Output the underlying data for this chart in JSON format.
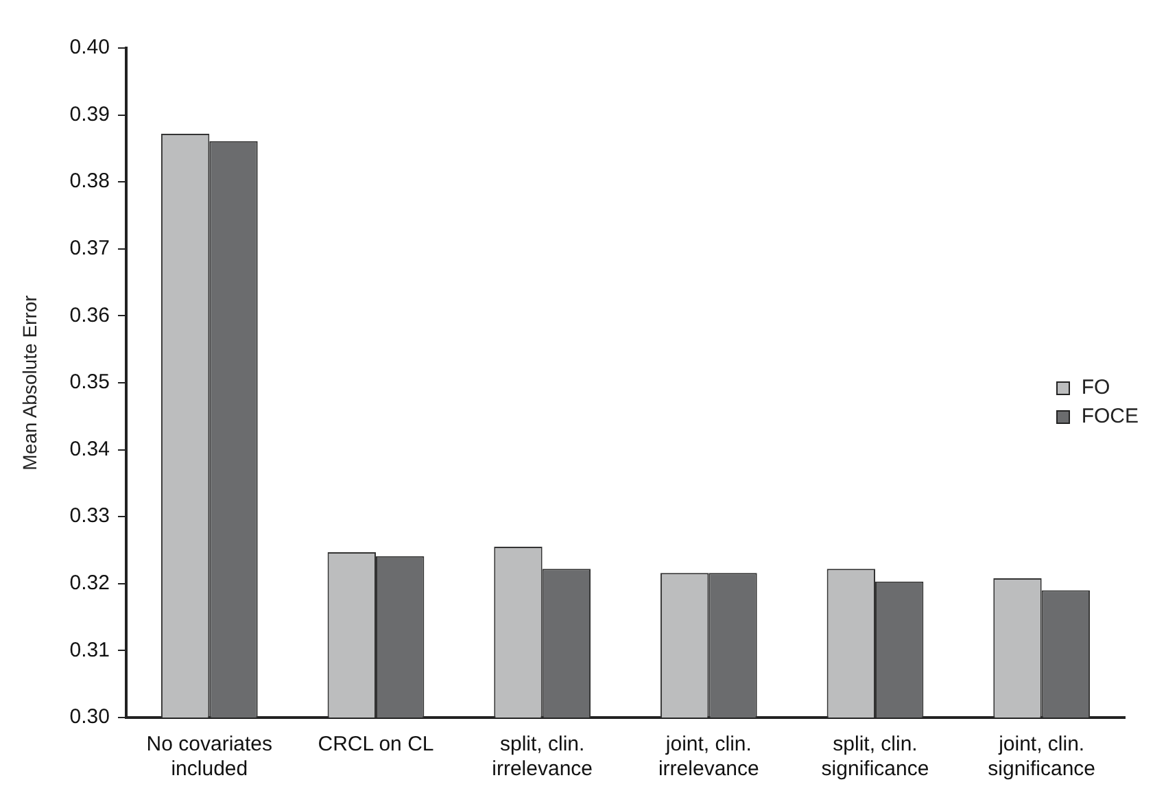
{
  "chart_data": {
    "type": "bar",
    "ylabel": "Mean Absolute Error",
    "categories": [
      "No covariates included",
      "CRCL on CL",
      "split, clin. irrelevance",
      "joint, clin. irrelevance",
      "split, clin. significance",
      "joint, clin. significance"
    ],
    "series": [
      {
        "name": "FO",
        "color": "#bcbdbe",
        "values": [
          0.3872,
          0.3247,
          0.3255,
          0.3216,
          0.3222,
          0.3208
        ]
      },
      {
        "name": "FOCE",
        "color": "#6b6c6e",
        "values": [
          0.3861,
          0.3241,
          0.3222,
          0.3216,
          0.3203,
          0.319
        ]
      }
    ],
    "ylim": [
      0.3,
      0.4
    ],
    "yticks": [
      {
        "value": 0.3,
        "label": "0.30"
      },
      {
        "value": 0.31,
        "label": "0.31"
      },
      {
        "value": 0.32,
        "label": "0.32"
      },
      {
        "value": 0.33,
        "label": "0.33"
      },
      {
        "value": 0.34,
        "label": "0.34"
      },
      {
        "value": 0.35,
        "label": "0.35"
      },
      {
        "value": 0.36,
        "label": "0.36"
      },
      {
        "value": 0.37,
        "label": "0.37"
      },
      {
        "value": 0.38,
        "label": "0.38"
      },
      {
        "value": 0.39,
        "label": "0.39"
      },
      {
        "value": 0.4,
        "label": "0.40"
      }
    ],
    "grid": false,
    "legend": "right"
  }
}
